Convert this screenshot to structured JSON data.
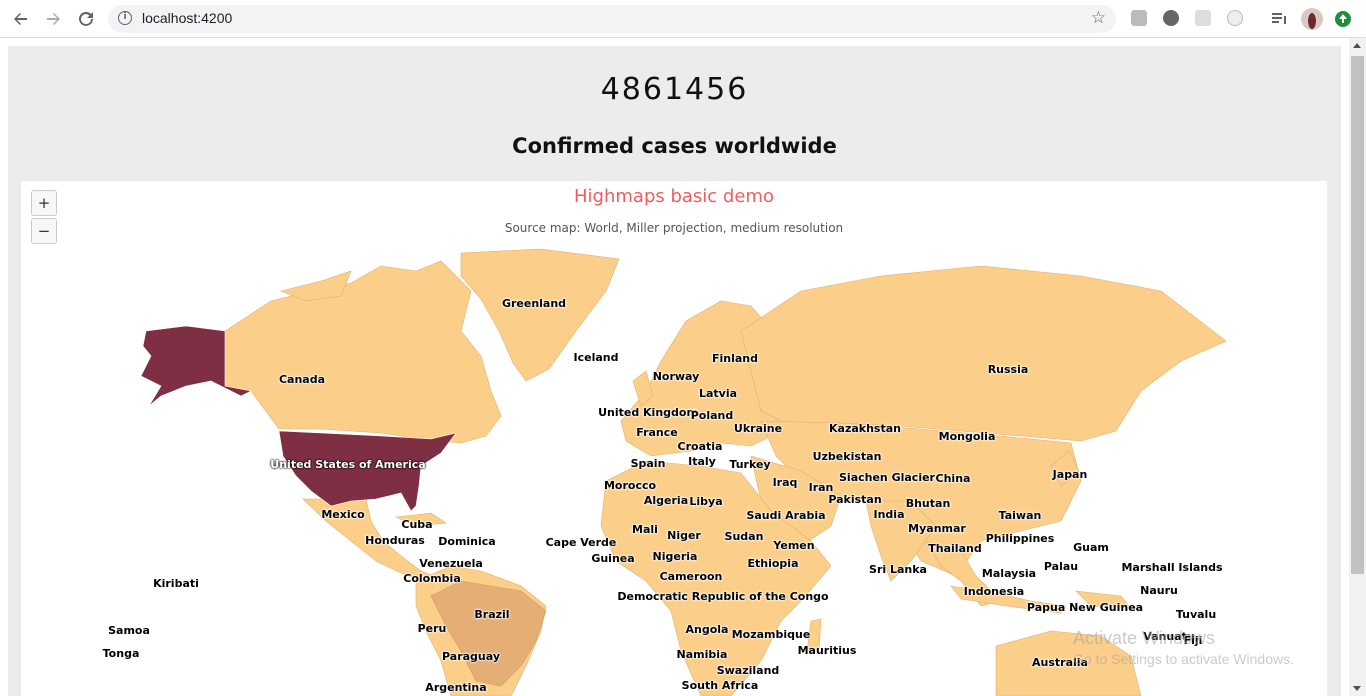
{
  "browser": {
    "url": "localhost:4200",
    "icons": [
      "back-arrow-icon",
      "forward-arrow-icon",
      "reload-icon",
      "info-icon",
      "star-icon",
      "extension-icon",
      "menu-icon",
      "profile-avatar",
      "update-icon"
    ]
  },
  "header": {
    "count": "4861456",
    "subtitle": "Confirmed cases worldwide"
  },
  "map": {
    "title": "Highmaps basic demo",
    "subtitle": "Source map: World, Miller projection, medium resolution",
    "zoom_in": "+",
    "zoom_out": "−",
    "colors": {
      "low": "#fbcf8a",
      "mid": "#e4ae74",
      "high": "#7f2f43",
      "title": "#f45b5b"
    },
    "countries": [
      {
        "name": "Greenland"
      },
      {
        "name": "Iceland"
      },
      {
        "name": "Finland"
      },
      {
        "name": "Canada"
      },
      {
        "name": "Norway"
      },
      {
        "name": "Russia"
      },
      {
        "name": "Latvia"
      },
      {
        "name": "United Kingdom"
      },
      {
        "name": "Poland"
      },
      {
        "name": "Ukraine"
      },
      {
        "name": "Kazakhstan"
      },
      {
        "name": "France"
      },
      {
        "name": "Mongolia"
      },
      {
        "name": "Croatia"
      },
      {
        "name": "United States of America"
      },
      {
        "name": "Spain"
      },
      {
        "name": "Italy"
      },
      {
        "name": "Turkey"
      },
      {
        "name": "Uzbekistan"
      },
      {
        "name": "Japan"
      },
      {
        "name": "Siachen Glacier"
      },
      {
        "name": "China"
      },
      {
        "name": "Iraq"
      },
      {
        "name": "Morocco"
      },
      {
        "name": "Iran"
      },
      {
        "name": "Algeria"
      },
      {
        "name": "Libya"
      },
      {
        "name": "Pakistan"
      },
      {
        "name": "Bhutan"
      },
      {
        "name": "Mexico"
      },
      {
        "name": "Saudi Arabia"
      },
      {
        "name": "India"
      },
      {
        "name": "Taiwan"
      },
      {
        "name": "Cuba"
      },
      {
        "name": "Mali"
      },
      {
        "name": "Myanmar"
      },
      {
        "name": "Niger"
      },
      {
        "name": "Sudan"
      },
      {
        "name": "Honduras"
      },
      {
        "name": "Dominica"
      },
      {
        "name": "Philippines"
      },
      {
        "name": "Cape Verde"
      },
      {
        "name": "Yemen"
      },
      {
        "name": "Thailand"
      },
      {
        "name": "Guam"
      },
      {
        "name": "Guinea"
      },
      {
        "name": "Nigeria"
      },
      {
        "name": "Venezuela"
      },
      {
        "name": "Ethiopia"
      },
      {
        "name": "Palau"
      },
      {
        "name": "Marshall Islands"
      },
      {
        "name": "Sri Lanka"
      },
      {
        "name": "Malaysia"
      },
      {
        "name": "Kiribati"
      },
      {
        "name": "Colombia"
      },
      {
        "name": "Cameroon"
      },
      {
        "name": "Nauru"
      },
      {
        "name": "Indonesia"
      },
      {
        "name": "Democratic Republic of the Congo"
      },
      {
        "name": "Papua New Guinea"
      },
      {
        "name": "Brazil"
      },
      {
        "name": "Tuvalu"
      },
      {
        "name": "Samoa"
      },
      {
        "name": "Peru"
      },
      {
        "name": "Angola"
      },
      {
        "name": "Mozambique"
      },
      {
        "name": "Vanuatu"
      },
      {
        "name": "Fiji"
      },
      {
        "name": "Tonga"
      },
      {
        "name": "Mauritius"
      },
      {
        "name": "Paraguay"
      },
      {
        "name": "Namibia"
      },
      {
        "name": "Australia"
      },
      {
        "name": "Swaziland"
      },
      {
        "name": "Argentina"
      },
      {
        "name": "South Africa"
      }
    ]
  },
  "watermark": {
    "line1": "Activate Windows",
    "line2": "Go to Settings to activate Windows."
  }
}
